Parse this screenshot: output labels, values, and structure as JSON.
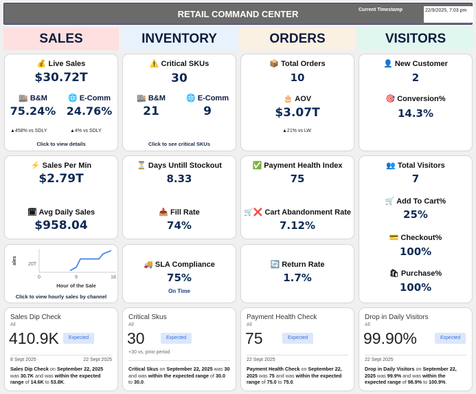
{
  "header": {
    "title": "RETAIL COMMAND CENTER",
    "timestamp_label": "Current Timestamp",
    "timestamp_value": "22/9/2025, 7:03 pm"
  },
  "sections": [
    {
      "label": "SALES",
      "color": "#fde0df"
    },
    {
      "label": "INVENTORY",
      "color": "#e7f2fd"
    },
    {
      "label": "ORDERS",
      "color": "#fbf1e2"
    },
    {
      "label": "VISITORS",
      "color": "#dff7ef"
    }
  ],
  "sales": {
    "live": {
      "icon": "money-bag-icon",
      "label": "Live Sales",
      "value": "$30.72T",
      "bm_label": "B&M",
      "bm_value": "75.24%",
      "bm_delta": "▲458% vs SDLY",
      "ec_label": "E-Comm",
      "ec_value": "24.76%",
      "ec_delta": "▲4% vs SDLY",
      "link": "Click to view details"
    },
    "per_min": {
      "label": "Sales Per Min",
      "value": "$2.79T"
    },
    "avg_daily": {
      "label": "Avg Daily Sales",
      "value": "$958.04"
    },
    "hourly_link": "Click to view hourly sales by channel"
  },
  "inventory": {
    "critical": {
      "label": "Critical SKUs",
      "value": "30",
      "bm_label": "B&M",
      "bm_value": "21",
      "ec_label": "E-Comm",
      "ec_value": "9",
      "link": "Click to see critical SKUs"
    },
    "stockout": {
      "label": "Days Untill Stockout",
      "value": "8.33"
    },
    "fill": {
      "label": "Fill Rate",
      "value": "74%"
    },
    "sla": {
      "label": "SLA Compliance",
      "value": "75%",
      "sub": "On Time"
    }
  },
  "orders": {
    "total": {
      "label": "Total Orders",
      "value": "10"
    },
    "aov": {
      "label": "AOV",
      "value": "$3.07T",
      "delta": "▲21% vs LW"
    },
    "payment": {
      "label": "Payment Health Index",
      "value": "75"
    },
    "cart_abandon": {
      "label": "Cart Abandonment Rate",
      "value": "7.12%"
    },
    "return": {
      "label": "Return Rate",
      "value": "1.7%"
    }
  },
  "visitors": {
    "new": {
      "label": "New Customer",
      "value": "2"
    },
    "conversion": {
      "label": "Conversion%",
      "value": "14.3%"
    },
    "total": {
      "label": "Total Visitors",
      "value": "7"
    },
    "add_cart": {
      "label": "Add To Cart%",
      "value": "25%"
    },
    "checkout": {
      "label": "Checkout%",
      "value": "100%"
    },
    "purchase": {
      "label": "Purchase%",
      "value": "100%"
    }
  },
  "chart_data": {
    "type": "line",
    "xlabel": "Hour of the Sale",
    "ylabel": "ales",
    "x_ticks": [
      "0",
      "9",
      "18"
    ],
    "y_ticks": [
      "20T"
    ],
    "xlim": [
      0,
      18
    ],
    "ylim": [
      10,
      38
    ],
    "x": [
      7.5,
      9,
      10,
      14.5,
      15.5,
      17.5
    ],
    "y": [
      12,
      16,
      26,
      26,
      32,
      36
    ],
    "color": "#4a86e8"
  },
  "checks": [
    {
      "title": "Sales Dip Check",
      "filter": "All",
      "value": "410.9K",
      "badge": "Expected",
      "date_start": "8 Sept 2025",
      "date_end": "22 Sept 2025",
      "sub": "",
      "desc": [
        "Sales Dip Check",
        " on ",
        "September 22, 2025",
        " was ",
        "30.7K",
        " and was ",
        "within the expected range",
        " of ",
        "14.6K",
        " to ",
        "53.8K",
        "."
      ]
    },
    {
      "title": "Critical Skus",
      "filter": "All",
      "value": "30",
      "badge": "Expected",
      "date_start": "",
      "date_end": "",
      "sub": "+30 vs. prior period",
      "desc": [
        "Critical Skus",
        " on ",
        "September 22, 2025",
        " was ",
        "30",
        " and was ",
        "within the expected range",
        " of ",
        "30.0",
        " to ",
        "30.0",
        "."
      ]
    },
    {
      "title": "Payment Health Check",
      "filter": "All",
      "value": "75",
      "badge": "Expected",
      "date_start": "22 Sept 2025",
      "date_end": "",
      "sub": "",
      "desc": [
        "Payment Health Check",
        " on ",
        "September 22, 2025",
        " was ",
        "75",
        " and was ",
        "within the expected range",
        " of ",
        "75.0",
        " to ",
        "75.0",
        "."
      ]
    },
    {
      "title": "Drop in Daily Visitors",
      "filter": "All",
      "value": "99.90%",
      "badge": "Expected",
      "date_start": "22 Sept 2025",
      "date_end": "",
      "sub": "",
      "desc": [
        "Drop in Daily Visitors",
        " on ",
        "September 22, 2025",
        " was ",
        "99.9%",
        " and was ",
        "within the expected range",
        " of ",
        "98.9%",
        " to ",
        "100.9%",
        "."
      ]
    }
  ]
}
